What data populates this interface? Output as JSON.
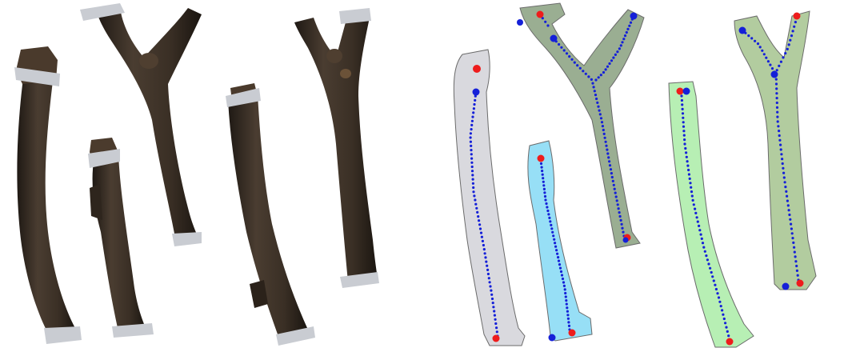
{
  "scene": {
    "description_free": true,
    "left_panel": {
      "colors": {
        "bark": "#3b3128",
        "bark_dark": "#231c16",
        "bark_light": "#5a4a3c",
        "tape": "#c9ccd2"
      },
      "branches": [
        {
          "id": "photo-branch-1"
        },
        {
          "id": "photo-branch-2"
        },
        {
          "id": "photo-branch-3"
        },
        {
          "id": "photo-branch-4"
        },
        {
          "id": "photo-branch-5"
        }
      ]
    },
    "right_panel": {
      "colors": {
        "point": "#1520d8",
        "endpoint": "#ee1c1c",
        "outline": "#6b6b6b"
      },
      "masks": [
        {
          "id": "mask-gray",
          "fill": "#d9d9de"
        },
        {
          "id": "mask-cyan",
          "fill": "#97dff6"
        },
        {
          "id": "mask-olive-y",
          "fill": "#9aae92"
        },
        {
          "id": "mask-lightgreen",
          "fill": "#b7efb4"
        },
        {
          "id": "mask-olive-right",
          "fill": "#b2cc9f"
        }
      ]
    }
  }
}
